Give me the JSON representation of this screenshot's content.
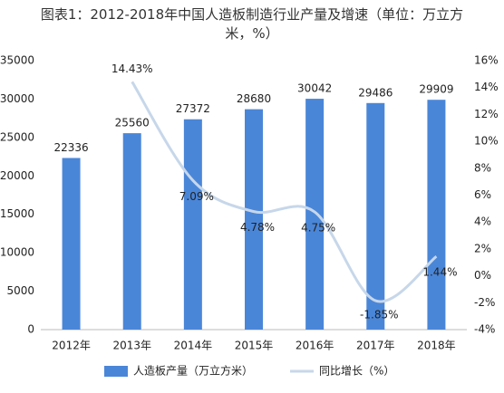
{
  "chart_data": {
    "type": "bar-line",
    "title": "图表1：2012-2018年中国人造板制造行业产量及增速（单位：万立方米，%）",
    "categories": [
      "2012年",
      "2013年",
      "2014年",
      "2015年",
      "2016年",
      "2017年",
      "2018年"
    ],
    "series": [
      {
        "name": "人造板产量（万立方米）",
        "type": "bar",
        "color": "#4a86d8",
        "values": [
          22336,
          25560,
          27372,
          28680,
          30042,
          29486,
          29909
        ]
      },
      {
        "name": "同比增长（%）",
        "type": "line",
        "axis": "y2",
        "color": "#c7d7ea",
        "values": [
          null,
          14.43,
          7.09,
          4.78,
          4.75,
          -1.85,
          1.44
        ],
        "value_labels": [
          null,
          "14.43%",
          "7.09%",
          "4.78%",
          "4.75%",
          "-1.85%",
          "1.44%"
        ]
      }
    ],
    "ylim": [
      0,
      35000
    ],
    "yticks": [
      0,
      5000,
      10000,
      15000,
      20000,
      25000,
      30000,
      35000
    ],
    "y2lim": [
      -4,
      16
    ],
    "y2ticks": [
      {
        "value": -4,
        "label": "-4%"
      },
      {
        "value": -2,
        "label": "-2%"
      },
      {
        "value": 0,
        "label": "0%"
      },
      {
        "value": 2,
        "label": "2%"
      },
      {
        "value": 4,
        "label": "4%"
      },
      {
        "value": 6,
        "label": "6%"
      },
      {
        "value": 8,
        "label": "8%"
      },
      {
        "value": 10,
        "label": "10%"
      },
      {
        "value": 12,
        "label": "12%"
      },
      {
        "value": 14,
        "label": "14%"
      },
      {
        "value": 16,
        "label": "16%"
      }
    ],
    "legend": "bottom",
    "grid": false
  }
}
